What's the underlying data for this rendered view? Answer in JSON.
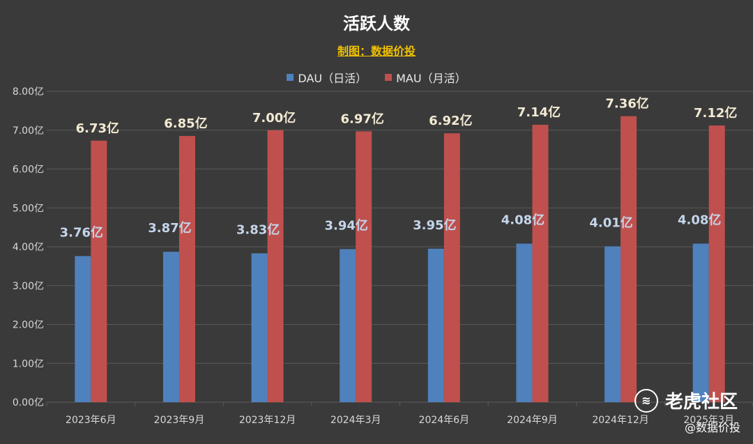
{
  "title": "活跃人数",
  "subtitle": "制图：数据价投",
  "watermark": {
    "brand": "老虎社区",
    "handle": "@数据价投",
    "logo_icon": "tiger-community-logo-icon"
  },
  "colors": {
    "dau": "#4f81bd",
    "mau": "#c0504d",
    "background": "#3a3a3a",
    "grid": "#5a5a5a",
    "axis_text": "#d8d8d8",
    "dau_label": "#c5d5ea",
    "mau_label": "#f3ead3"
  },
  "chart_data": {
    "type": "bar",
    "title": "活跃人数",
    "subtitle": "制图：数据价投",
    "categories": [
      "2023年6月",
      "2023年9月",
      "2023年12月",
      "2024年3月",
      "2024年6月",
      "2024年9月",
      "2024年12月",
      "2025年3月"
    ],
    "series": [
      {
        "name": "DAU（日活）",
        "values": [
          3.76,
          3.87,
          3.83,
          3.94,
          3.95,
          4.08,
          4.01,
          4.08
        ]
      },
      {
        "name": "MAU（月活）",
        "values": [
          6.73,
          6.85,
          7.0,
          6.97,
          6.92,
          7.14,
          7.36,
          7.12
        ]
      }
    ],
    "data_labels": {
      "dau": [
        "3.76亿",
        "3.87亿",
        "3.83亿",
        "3.94亿",
        "3.95亿",
        "4.08亿",
        "4.01亿",
        "4.08亿"
      ],
      "mau": [
        "6.73亿",
        "6.85亿",
        "7.00亿",
        "6.97亿",
        "6.92亿",
        "7.14亿",
        "7.36亿",
        "7.12亿"
      ]
    },
    "yticks": [
      "0.00亿",
      "1.00亿",
      "2.00亿",
      "3.00亿",
      "4.00亿",
      "5.00亿",
      "6.00亿",
      "7.00亿",
      "8.00亿"
    ],
    "ylim": [
      0,
      8
    ],
    "grid": true,
    "legend": "top-center"
  }
}
